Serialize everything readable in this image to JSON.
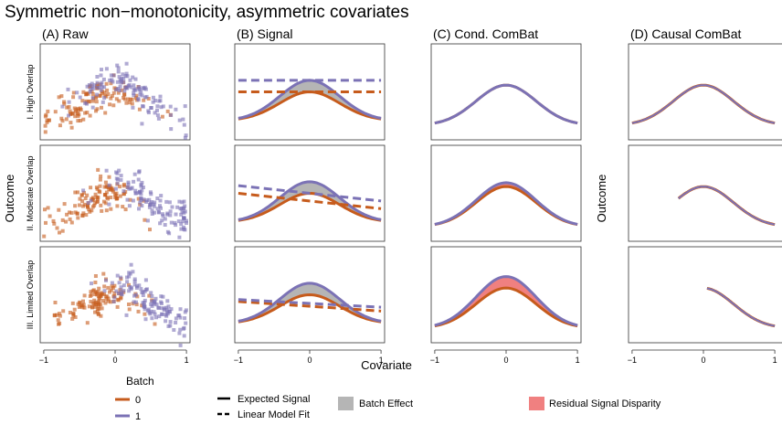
{
  "title": "Symmetric non−monotonicity, asymmetric covariates",
  "columns": [
    "(A) Raw",
    "(B) Signal",
    "(C) Cond. ComBat",
    "(D) Causal ComBat"
  ],
  "rows": [
    "I. High Overlap",
    "II. Moderate Overlap",
    "III. Limited Overlap"
  ],
  "xlabel": "Covariate",
  "ylabel_left": "Outcome",
  "ylabel_right": "Outcome",
  "xticks": [
    "−1",
    "0",
    "1"
  ],
  "colors": {
    "batch0": "#c65b1c",
    "batch1": "#7b72b5",
    "batch_effect": "#b5b5b5",
    "residual": "#f08080"
  },
  "legend": {
    "batch_title": "Batch",
    "batch_items": [
      "0",
      "1"
    ],
    "line_items": [
      "Expected Signal",
      "Linear Model Fit"
    ],
    "fill_items": [
      "Batch Effect",
      "Residual Signal Disparity"
    ]
  },
  "chart_data": {
    "type": "line",
    "xlim": [
      -1.05,
      1.05
    ],
    "ylim": [
      0,
      1
    ],
    "curve": {
      "x": [
        -1,
        -0.5,
        0,
        0.5,
        1
      ],
      "batch1_peak": 0.62,
      "batch0_peak": 0.5,
      "base": 0.2
    },
    "panels": [
      {
        "row": "I. High Overlap",
        "signal_fit": {
          "batch1": [
            0.62,
            0.62
          ],
          "batch0": [
            0.5,
            0.5
          ]
        },
        "combat_range": [
          -1,
          1
        ],
        "causal_range": [
          -1,
          1
        ]
      },
      {
        "row": "II. Moderate Overlap",
        "signal_fit": {
          "batch1": [
            0.58,
            0.42
          ],
          "batch0": [
            0.5,
            0.34
          ]
        },
        "combat_range": [
          -1,
          1
        ],
        "causal_range": [
          -0.35,
          1
        ]
      },
      {
        "row": "III. Limited Overlap",
        "signal_fit": {
          "batch1": [
            0.45,
            0.37
          ],
          "batch0": [
            0.43,
            0.33
          ]
        },
        "combat_range": [
          -1,
          1
        ],
        "causal_range": [
          0.05,
          1
        ]
      }
    ]
  }
}
